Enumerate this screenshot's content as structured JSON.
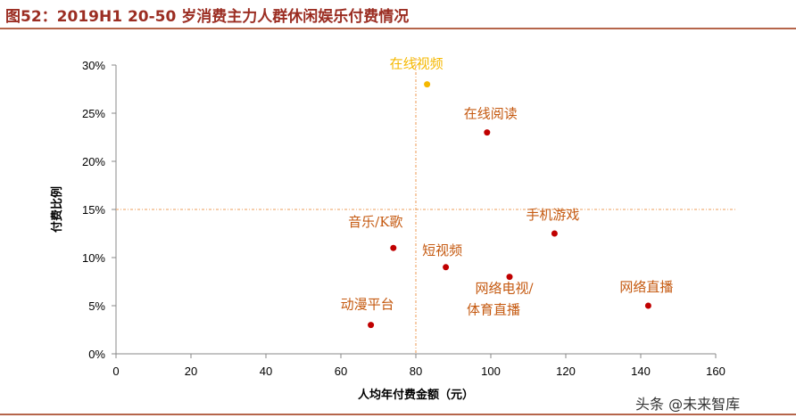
{
  "title": "图52：2019H1 20-50 岁消费主力人群休闲娱乐付费情况",
  "watermark": "头条 @未来智库",
  "colors": {
    "point": "#c00000",
    "highlight_point": "#f5b800",
    "label": "#c55a11",
    "highlight_label": "#f5b800",
    "guide": "#f0b07a",
    "title": "#9b2d22"
  },
  "chart_data": {
    "type": "scatter",
    "xlabel": "人均年付费金额（元）",
    "ylabel": "付费比例",
    "xlim": [
      0,
      160
    ],
    "ylim": [
      0,
      30
    ],
    "x_ticks": [
      "0",
      "20",
      "40",
      "60",
      "80",
      "100",
      "120",
      "140",
      "160"
    ],
    "y_ticks": [
      "0%",
      "5%",
      "10%",
      "15%",
      "20%",
      "25%",
      "30%"
    ],
    "grid": false,
    "reference_lines": {
      "x": 80,
      "y": 15
    },
    "points": [
      {
        "label": "在线视频",
        "x": 83,
        "y": 28,
        "highlight": true
      },
      {
        "label": "在线阅读",
        "x": 99,
        "y": 23
      },
      {
        "label": "音乐/K歌",
        "x": 74,
        "y": 11
      },
      {
        "label": "手机游戏",
        "x": 117,
        "y": 12.5
      },
      {
        "label": "短视频",
        "x": 88,
        "y": 9
      },
      {
        "label": "网络电视/体育直播",
        "x": 105,
        "y": 8
      },
      {
        "label": "网络直播",
        "x": 142,
        "y": 5
      },
      {
        "label": "动漫平台",
        "x": 68,
        "y": 3
      }
    ]
  }
}
